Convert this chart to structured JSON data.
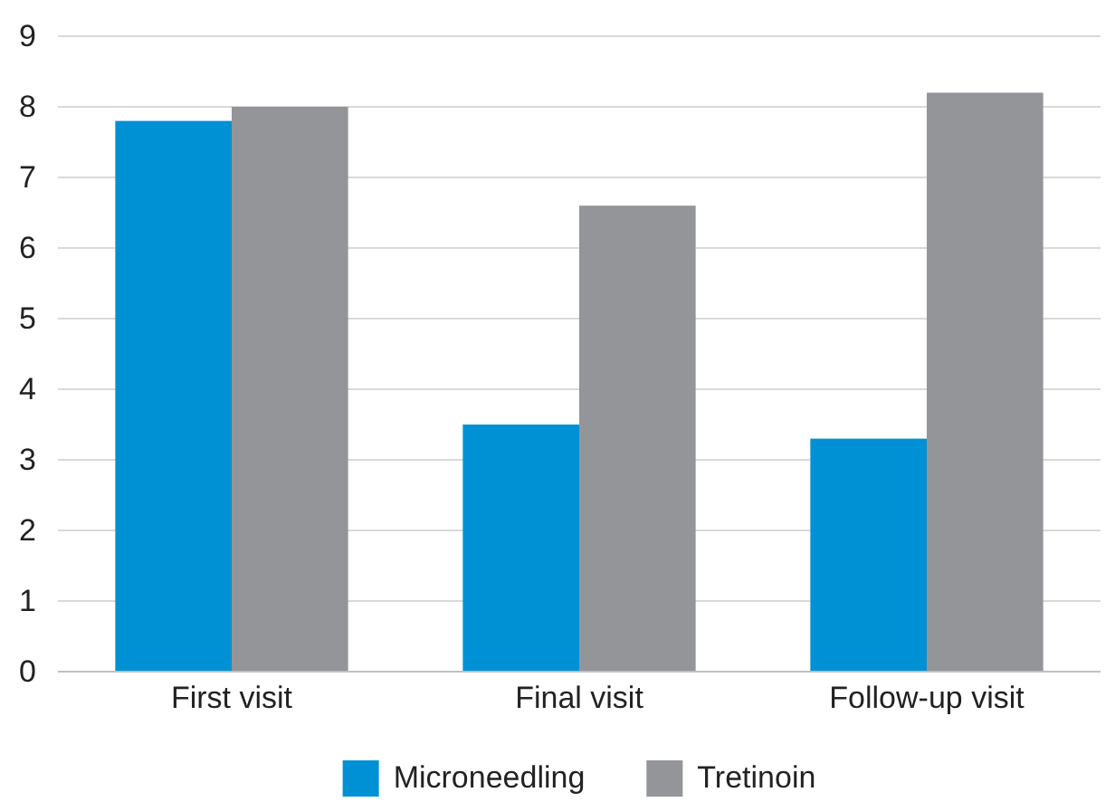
{
  "chart_data": {
    "type": "bar",
    "categories": [
      "First visit",
      "Final visit",
      "Follow-up visit"
    ],
    "series": [
      {
        "name": "Microneedling",
        "color": "#0091d5",
        "values": [
          7.8,
          3.5,
          3.3
        ]
      },
      {
        "name": "Tretinoin",
        "color": "#939598",
        "values": [
          8.0,
          6.6,
          8.2
        ]
      }
    ],
    "ylim": [
      0,
      9
    ],
    "yticks": [
      0,
      1,
      2,
      3,
      4,
      5,
      6,
      7,
      8,
      9
    ],
    "grid": "y",
    "legend": "bottom"
  }
}
